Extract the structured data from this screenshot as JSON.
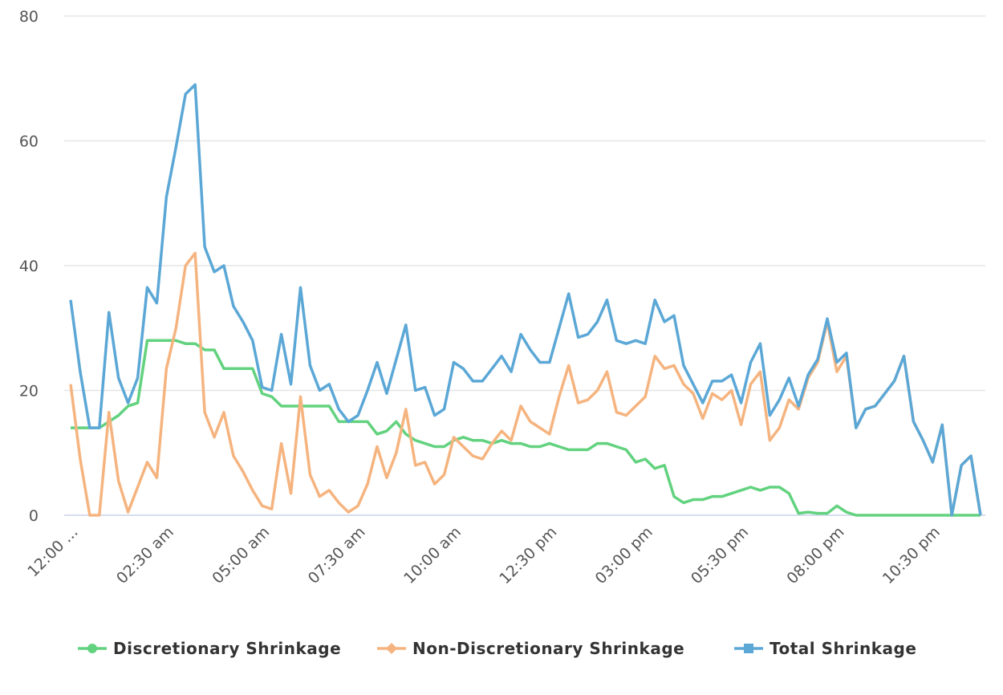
{
  "chart_data": {
    "type": "line",
    "categories": [
      "12:00 ...",
      null,
      null,
      null,
      null,
      null,
      null,
      null,
      null,
      null,
      "02:30 am",
      null,
      null,
      null,
      null,
      null,
      null,
      null,
      null,
      null,
      "05:00 am",
      null,
      null,
      null,
      null,
      null,
      null,
      null,
      null,
      null,
      "07:30 am",
      null,
      null,
      null,
      null,
      null,
      null,
      null,
      null,
      null,
      "10:00 am",
      null,
      null,
      null,
      null,
      null,
      null,
      null,
      null,
      null,
      "12:30 pm",
      null,
      null,
      null,
      null,
      null,
      null,
      null,
      null,
      null,
      "03:00 pm",
      null,
      null,
      null,
      null,
      null,
      null,
      null,
      null,
      null,
      "05:30 pm",
      null,
      null,
      null,
      null,
      null,
      null,
      null,
      null,
      null,
      "08:00 pm",
      null,
      null,
      null,
      null,
      null,
      null,
      null,
      null,
      null,
      "10:30 pm",
      null,
      null,
      null,
      null,
      null
    ],
    "series": [
      {
        "name": "Discretionary Shrinkage",
        "color": "#62d27f",
        "marker": "circle",
        "values": [
          14,
          14,
          14,
          14,
          15,
          16,
          17.5,
          18,
          28,
          28,
          28,
          28,
          27.5,
          27.5,
          26.5,
          26.5,
          23.5,
          23.5,
          23.5,
          23.5,
          19.5,
          19,
          17.5,
          17.5,
          17.5,
          17.5,
          17.5,
          17.5,
          15,
          15,
          15,
          15,
          13,
          13.5,
          15,
          13,
          12,
          11.5,
          11,
          11,
          12,
          12.5,
          12,
          12,
          11.5,
          12,
          11.5,
          11.5,
          11,
          11,
          11.5,
          11,
          10.5,
          10.5,
          10.5,
          11.5,
          11.5,
          11,
          10.5,
          8.5,
          9,
          7.5,
          8,
          3,
          2,
          2.5,
          2.5,
          3,
          3,
          3.5,
          4,
          4.5,
          4,
          4.5,
          4.5,
          3.5,
          0.3,
          0.5,
          0.3,
          0.3,
          1.5,
          0.5,
          0,
          0,
          0,
          0,
          0,
          0,
          0,
          0,
          0,
          0,
          0,
          0,
          0,
          0
        ]
      },
      {
        "name": "Non-Discretionary Shrinkage",
        "color": "#f5b47f",
        "marker": "diamond",
        "values": [
          21,
          9,
          0,
          0,
          16.5,
          5.5,
          0.5,
          4.5,
          8.5,
          6,
          23.5,
          30,
          40,
          42,
          16.5,
          12.5,
          16.5,
          9.5,
          7,
          4,
          1.5,
          1,
          11.5,
          3.5,
          19,
          6.5,
          3,
          4,
          2,
          0.5,
          1.5,
          5,
          11,
          6,
          10,
          17,
          8,
          8.5,
          5,
          6.5,
          12.5,
          11,
          9.5,
          9,
          11.5,
          13.5,
          12,
          17.5,
          15,
          14,
          13,
          19,
          24,
          18,
          18.5,
          20,
          23,
          16.5,
          16,
          17.5,
          19,
          25.5,
          23.5,
          24,
          21,
          19.5,
          15.5,
          19.5,
          18.5,
          20,
          14.5,
          21,
          23,
          12,
          14,
          18.5,
          17,
          22,
          24.5,
          31,
          23,
          25.5,
          14,
          17,
          17.5,
          19.5,
          21.5,
          25.5,
          15,
          12,
          8.5,
          14.5,
          0,
          8,
          9.5,
          0
        ]
      },
      {
        "name": "Total Shrinkage",
        "color": "#5ba7d6",
        "marker": "square",
        "values": [
          34.5,
          23,
          14,
          14,
          32.5,
          22,
          18,
          22,
          36.5,
          34,
          51,
          59,
          67.5,
          69,
          43,
          39,
          40,
          33.5,
          31,
          28,
          20.5,
          20,
          29,
          21,
          36.5,
          24,
          20,
          21,
          17,
          15,
          16,
          20,
          24.5,
          19.5,
          25,
          30.5,
          20,
          20.5,
          16,
          17,
          24.5,
          23.5,
          21.5,
          21.5,
          23.5,
          25.5,
          23,
          29,
          26.5,
          24.5,
          24.5,
          30,
          35.5,
          28.5,
          29,
          31,
          34.5,
          28,
          27.5,
          28,
          27.5,
          34.5,
          31,
          32,
          24,
          21,
          18,
          21.5,
          21.5,
          22.5,
          18,
          24.5,
          27.5,
          16,
          18.5,
          22,
          17.5,
          22.5,
          25,
          31.5,
          24.5,
          26,
          14,
          17,
          17.5,
          19.5,
          21.5,
          25.5,
          15,
          12,
          8.5,
          14.5,
          0,
          8,
          9.5,
          0
        ]
      }
    ],
    "ylim": [
      0,
      80
    ],
    "yticks": [
      0,
      20,
      40,
      60,
      80
    ],
    "grid": true,
    "legend": "bottom"
  }
}
